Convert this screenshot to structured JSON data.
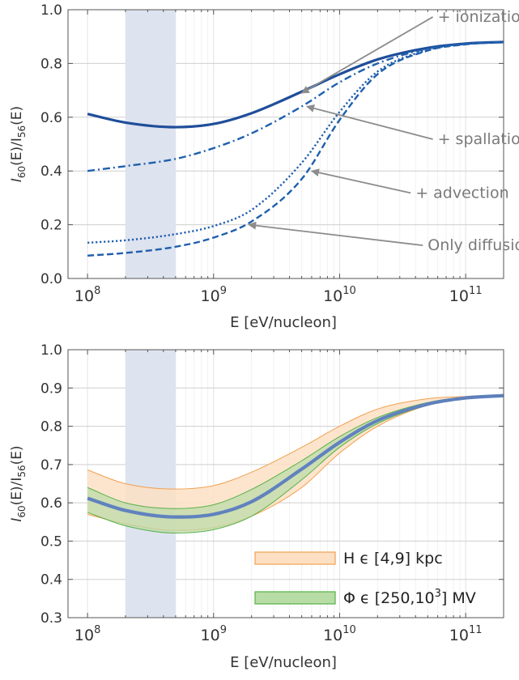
{
  "chart_data": [
    {
      "type": "line",
      "xscale": "log",
      "xlim": [
        70000000.0,
        200000000000.0
      ],
      "ylim": [
        0.0,
        1.0
      ],
      "xlabel": "E  [eV/nucleon]",
      "ylabel": {
        "main": "I",
        "sub1": "60",
        "mid": "(E)/I",
        "sub2": "56",
        "tail": "(E)"
      },
      "x_ticks": [
        {
          "value": 100000000.0,
          "label": "10",
          "exp": "8"
        },
        {
          "value": 1000000000.0,
          "label": "10",
          "exp": "9"
        },
        {
          "value": 10000000000.0,
          "label": "10",
          "exp": "10"
        },
        {
          "value": 100000000000.0,
          "label": "10",
          "exp": "11"
        }
      ],
      "y_ticks": [
        {
          "value": 0.0,
          "label": "0.0"
        },
        {
          "value": 0.2,
          "label": "0.2"
        },
        {
          "value": 0.4,
          "label": "0.4"
        },
        {
          "value": 0.6,
          "label": "0.6"
        },
        {
          "value": 0.8,
          "label": "0.8"
        },
        {
          "value": 1.0,
          "label": "1.0"
        }
      ],
      "grid": true,
      "shaded_band": {
        "x": [
          200000000.0,
          500000000.0
        ],
        "color": "#dde3ef"
      },
      "series": [
        {
          "name": "+ ionization",
          "style": "solid",
          "color": "#1f4e9a",
          "x": [
            100000000.0,
            200000000.0,
            500000000.0,
            1000000000.0,
            2000000000.0,
            5000000000.0,
            10000000000.0,
            20000000000.0,
            50000000000.0,
            100000000000.0,
            200000000000.0
          ],
          "y": [
            0.612,
            0.58,
            0.563,
            0.575,
            0.615,
            0.695,
            0.76,
            0.815,
            0.858,
            0.874,
            0.88
          ]
        },
        {
          "name": "+ spallation",
          "style": "dashdot",
          "color": "#1f5fae",
          "x": [
            100000000.0,
            200000000.0,
            500000000.0,
            1000000000.0,
            2000000000.0,
            5000000000.0,
            10000000000.0,
            20000000000.0,
            50000000000.0,
            100000000000.0,
            200000000000.0
          ],
          "y": [
            0.4,
            0.418,
            0.445,
            0.485,
            0.54,
            0.64,
            0.73,
            0.8,
            0.855,
            0.873,
            0.88
          ]
        },
        {
          "name": "+ advection",
          "style": "dotted",
          "color": "#1f5fae",
          "x": [
            100000000.0,
            200000000.0,
            500000000.0,
            1000000000.0,
            2000000000.0,
            5000000000.0,
            10000000000.0,
            20000000000.0,
            50000000000.0,
            100000000000.0,
            200000000000.0
          ],
          "y": [
            0.133,
            0.142,
            0.165,
            0.195,
            0.255,
            0.43,
            0.62,
            0.77,
            0.85,
            0.872,
            0.88
          ]
        },
        {
          "name": "Only diffusion",
          "style": "dashed",
          "color": "#1f5fae",
          "x": [
            100000000.0,
            200000000.0,
            500000000.0,
            1000000000.0,
            2000000000.0,
            5000000000.0,
            10000000000.0,
            20000000000.0,
            50000000000.0,
            100000000000.0,
            200000000000.0
          ],
          "y": [
            0.085,
            0.095,
            0.118,
            0.152,
            0.212,
            0.37,
            0.59,
            0.76,
            0.848,
            0.871,
            0.88
          ]
        }
      ],
      "annotations": [
        {
          "text": "+ ionization",
          "tx": 60000000000.0,
          "ty": 0.955,
          "ax": 5000000000.0,
          "ay": 0.69,
          "anchor": "start"
        },
        {
          "text": "+ spallation",
          "tx": 60000000000.0,
          "ty": 0.5,
          "ax": 5500000000.0,
          "ay": 0.64,
          "anchor": "start"
        },
        {
          "text": "+ advection",
          "tx": 40000000000.0,
          "ty": 0.3,
          "ax": 6000000000.0,
          "ay": 0.4,
          "anchor": "start"
        },
        {
          "text": "Only diffusion",
          "tx": 50000000000.0,
          "ty": 0.105,
          "ax": 1900000000.0,
          "ay": 0.2,
          "anchor": "start"
        }
      ]
    },
    {
      "type": "area",
      "xscale": "log",
      "xlim": [
        70000000.0,
        200000000000.0
      ],
      "ylim": [
        0.3,
        1.0
      ],
      "xlabel": "E  [eV/nucleon]",
      "ylabel": {
        "main": "I",
        "sub1": "60",
        "mid": "(E)/I",
        "sub2": "56",
        "tail": "(E)"
      },
      "x_ticks": [
        {
          "value": 100000000.0,
          "label": "10",
          "exp": "8"
        },
        {
          "value": 1000000000.0,
          "label": "10",
          "exp": "9"
        },
        {
          "value": 10000000000.0,
          "label": "10",
          "exp": "10"
        },
        {
          "value": 100000000000.0,
          "label": "10",
          "exp": "11"
        }
      ],
      "y_ticks": [
        {
          "value": 0.3,
          "label": "0.3"
        },
        {
          "value": 0.4,
          "label": "0.4"
        },
        {
          "value": 0.5,
          "label": "0.5"
        },
        {
          "value": 0.6,
          "label": "0.6"
        },
        {
          "value": 0.7,
          "label": "0.7"
        },
        {
          "value": 0.8,
          "label": "0.8"
        },
        {
          "value": 0.9,
          "label": "0.9"
        },
        {
          "value": 1.0,
          "label": "1.0"
        }
      ],
      "grid": true,
      "shaded_band": {
        "x": [
          200000000.0,
          500000000.0
        ],
        "color": "#dde3ef"
      },
      "x": [
        100000000.0,
        200000000.0,
        500000000.0,
        1000000000.0,
        2000000000.0,
        5000000000.0,
        10000000000.0,
        20000000000.0,
        50000000000.0,
        100000000000.0,
        200000000000.0
      ],
      "bands": [
        {
          "name": "H ϵ [4,9] kpc",
          "fill": "#fde0c4",
          "stroke": "#f0a050",
          "upper": [
            0.686,
            0.65,
            0.636,
            0.645,
            0.68,
            0.745,
            0.8,
            0.845,
            0.872,
            0.878,
            0.881
          ],
          "lower": [
            0.57,
            0.545,
            0.528,
            0.535,
            0.565,
            0.64,
            0.73,
            0.8,
            0.855,
            0.872,
            0.879
          ]
        },
        {
          "name": "Φ ϵ [250,10³] MV",
          "fill": "#b8dca6",
          "stroke": "#58b048",
          "opacity": 0.7,
          "upper": [
            0.64,
            0.6,
            0.585,
            0.595,
            0.635,
            0.71,
            0.773,
            0.823,
            0.862,
            0.876,
            0.881
          ],
          "lower": [
            0.575,
            0.54,
            0.521,
            0.53,
            0.565,
            0.66,
            0.745,
            0.807,
            0.855,
            0.872,
            0.879
          ]
        }
      ],
      "central": {
        "color": "#5a7cbf",
        "y": [
          0.612,
          0.58,
          0.563,
          0.57,
          0.603,
          0.688,
          0.758,
          0.815,
          0.858,
          0.874,
          0.88
        ]
      },
      "legend": {
        "placement": "bottom-right",
        "items": [
          {
            "label": "H ϵ [4,9] kpc",
            "fill": "#fde0c4",
            "stroke": "#f0a050"
          },
          {
            "label": "Φ ϵ [250,10",
            "exp": "3",
            "tail": "] MV",
            "fill": "#b8dca6",
            "stroke": "#58b048"
          }
        ]
      }
    }
  ]
}
